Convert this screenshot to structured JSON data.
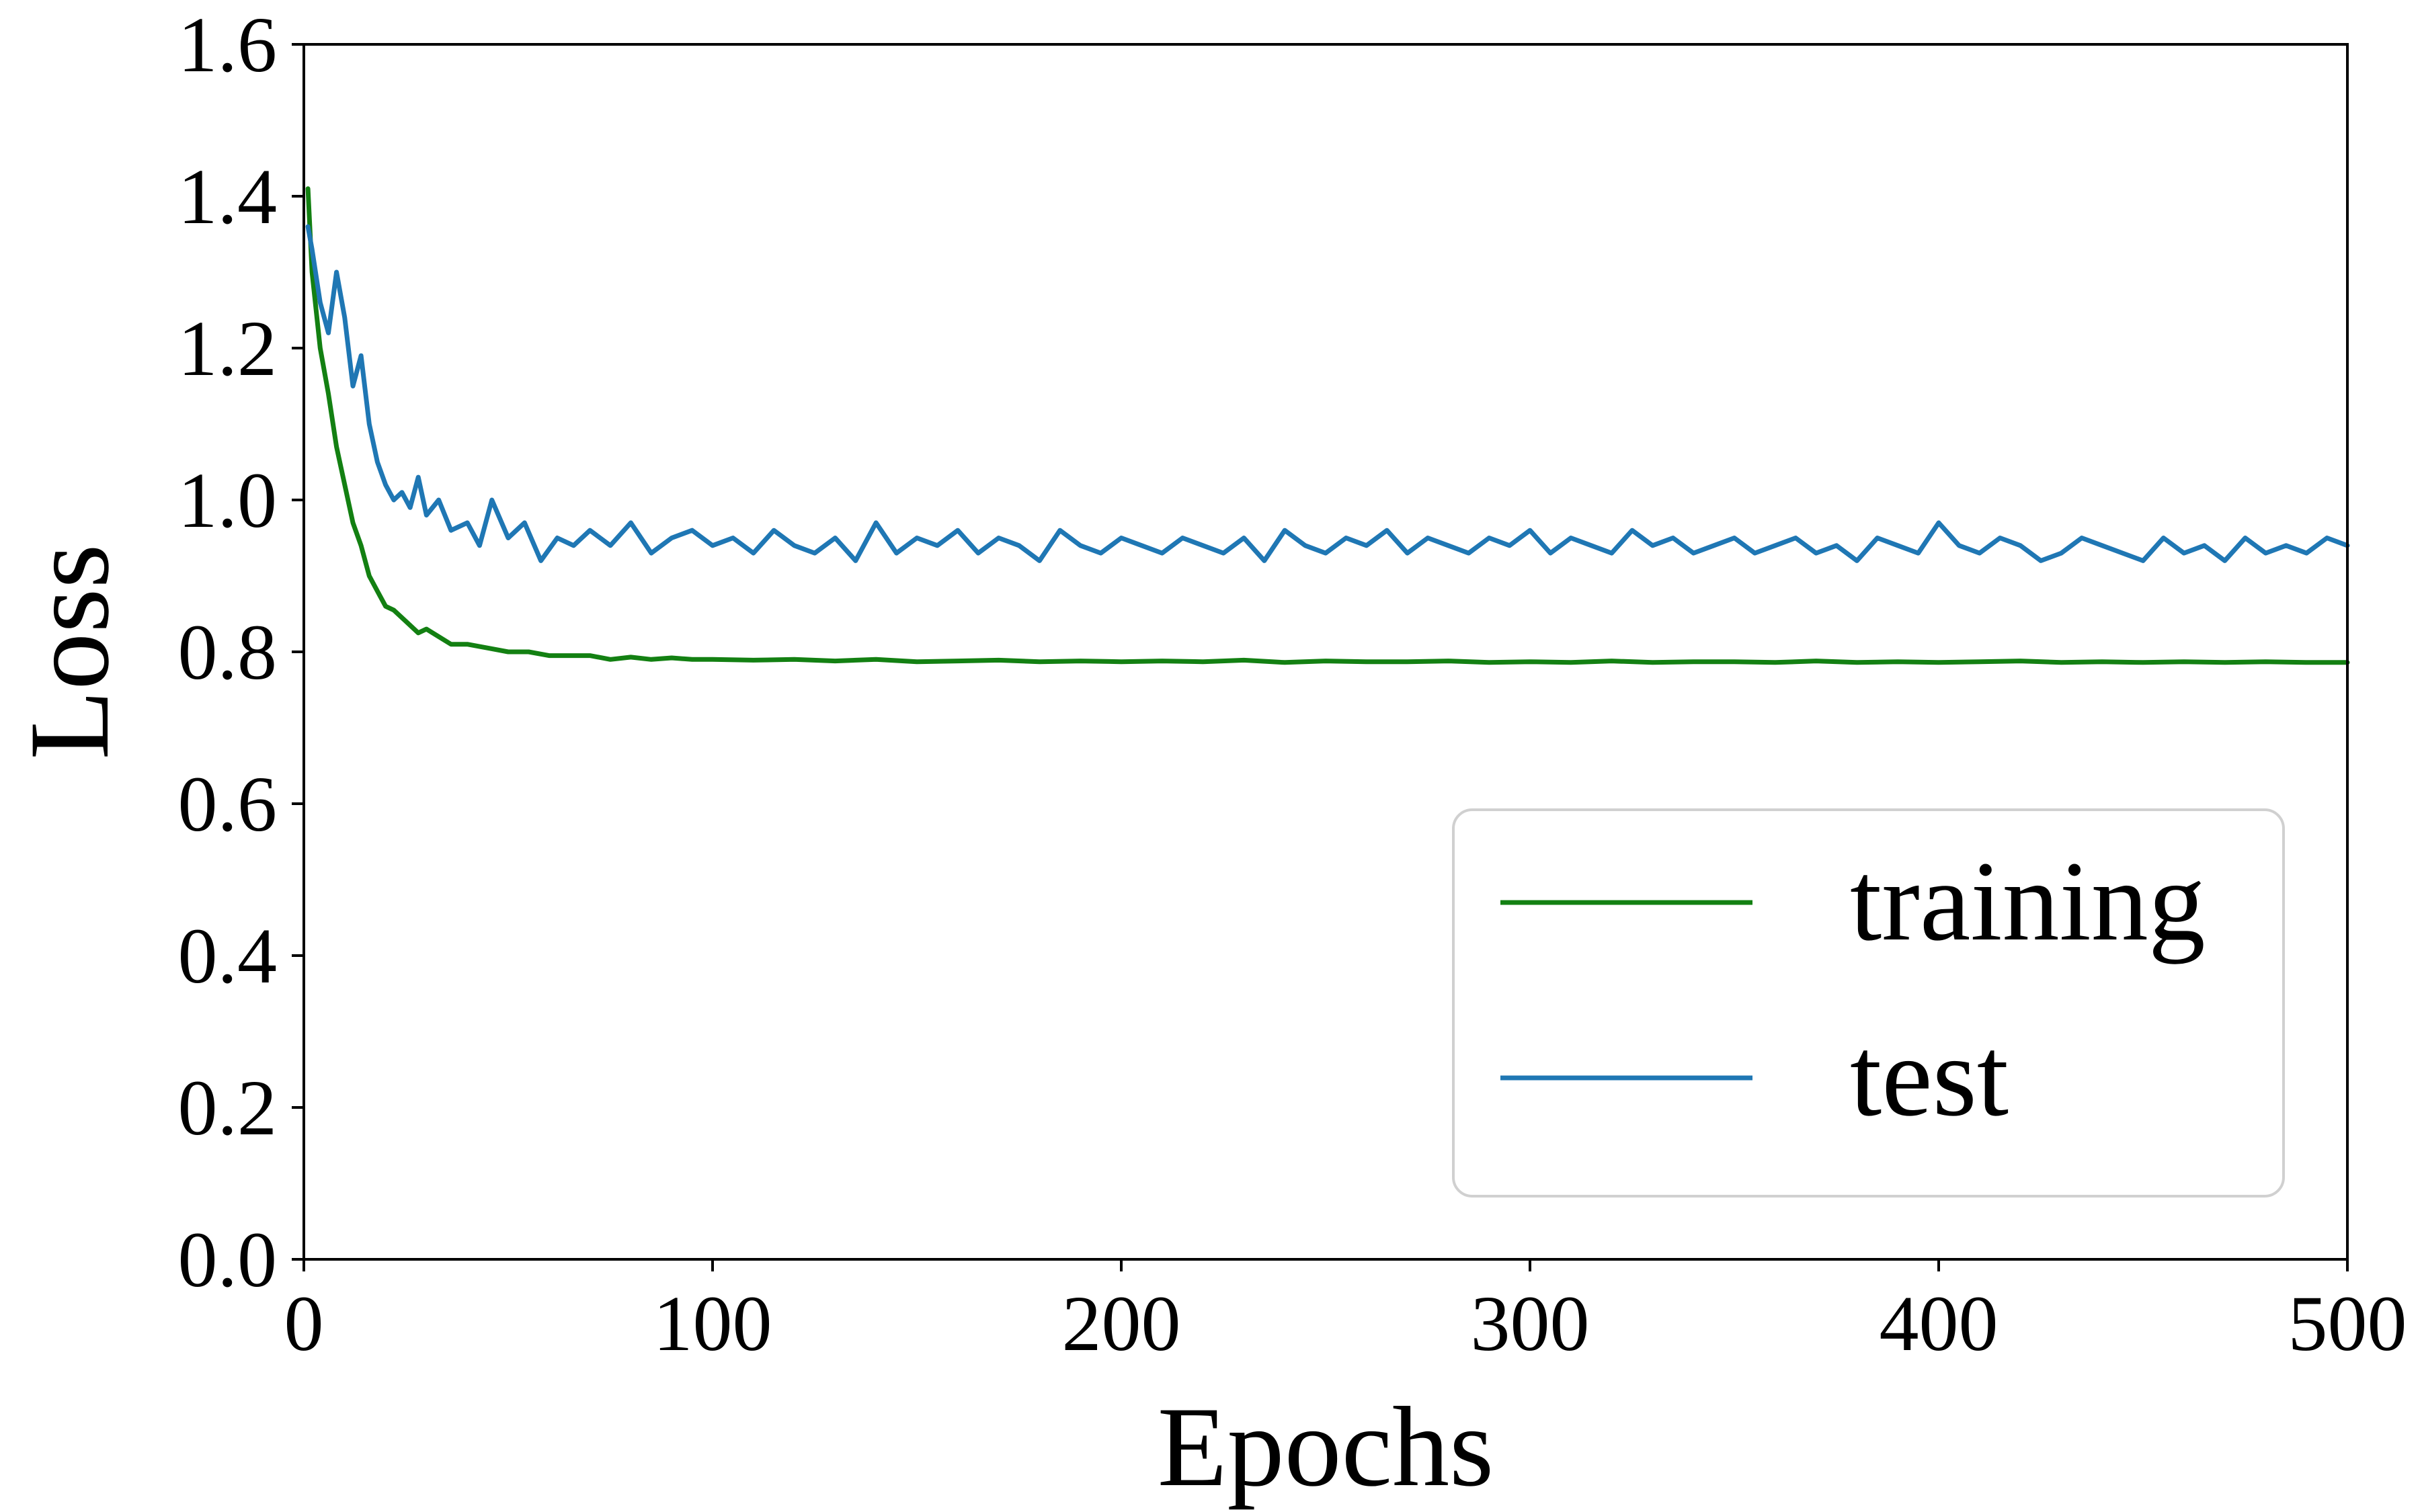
{
  "chart_data": {
    "type": "line",
    "title": "",
    "xlabel": "Epochs",
    "ylabel": "Loss",
    "xlim": [
      0,
      500
    ],
    "ylim": [
      0.0,
      1.6
    ],
    "xticks": [
      0,
      100,
      200,
      300,
      400,
      500
    ],
    "xtick_labels": [
      "0",
      "100",
      "200",
      "300",
      "400",
      "500"
    ],
    "yticks": [
      0.0,
      0.2,
      0.4,
      0.6,
      0.8,
      1.0,
      1.2,
      1.4,
      1.6
    ],
    "ytick_labels": [
      "0.0",
      "0.2",
      "0.4",
      "0.6",
      "0.8",
      "1.0",
      "1.2",
      "1.4",
      "1.6"
    ],
    "grid": false,
    "legend_position": "lower-right",
    "series": [
      {
        "name": "training",
        "color": "#138012",
        "x": [
          1,
          2,
          4,
          6,
          8,
          10,
          12,
          14,
          16,
          18,
          20,
          22,
          25,
          28,
          30,
          33,
          36,
          40,
          45,
          50,
          55,
          60,
          65,
          70,
          75,
          80,
          85,
          90,
          95,
          100,
          110,
          120,
          130,
          140,
          150,
          160,
          170,
          180,
          190,
          200,
          210,
          220,
          230,
          240,
          250,
          260,
          270,
          280,
          290,
          300,
          310,
          320,
          330,
          340,
          350,
          360,
          370,
          380,
          390,
          400,
          410,
          420,
          430,
          440,
          450,
          460,
          470,
          480,
          490,
          500
        ],
        "y": [
          1.41,
          1.3,
          1.2,
          1.14,
          1.07,
          1.02,
          0.97,
          0.94,
          0.9,
          0.88,
          0.86,
          0.855,
          0.84,
          0.825,
          0.83,
          0.82,
          0.81,
          0.81,
          0.805,
          0.8,
          0.8,
          0.795,
          0.795,
          0.795,
          0.79,
          0.793,
          0.79,
          0.792,
          0.79,
          0.79,
          0.789,
          0.79,
          0.788,
          0.79,
          0.787,
          0.788,
          0.789,
          0.787,
          0.788,
          0.787,
          0.788,
          0.787,
          0.789,
          0.786,
          0.788,
          0.787,
          0.787,
          0.788,
          0.786,
          0.787,
          0.786,
          0.788,
          0.786,
          0.787,
          0.787,
          0.786,
          0.788,
          0.786,
          0.787,
          0.786,
          0.787,
          0.788,
          0.786,
          0.787,
          0.786,
          0.787,
          0.786,
          0.787,
          0.786,
          0.786
        ]
      },
      {
        "name": "test",
        "color": "#1f77b4",
        "x": [
          1,
          2,
          4,
          6,
          8,
          10,
          12,
          14,
          16,
          18,
          20,
          22,
          24,
          26,
          28,
          30,
          33,
          36,
          40,
          43,
          46,
          50,
          54,
          58,
          62,
          66,
          70,
          75,
          80,
          85,
          90,
          95,
          100,
          105,
          110,
          115,
          120,
          125,
          130,
          135,
          140,
          145,
          150,
          155,
          160,
          165,
          170,
          175,
          180,
          185,
          190,
          195,
          200,
          205,
          210,
          215,
          220,
          225,
          230,
          235,
          240,
          245,
          250,
          255,
          260,
          265,
          270,
          275,
          280,
          285,
          290,
          295,
          300,
          305,
          310,
          315,
          320,
          325,
          330,
          335,
          340,
          345,
          350,
          355,
          360,
          365,
          370,
          375,
          380,
          385,
          390,
          395,
          400,
          405,
          410,
          415,
          420,
          425,
          430,
          435,
          440,
          445,
          450,
          455,
          460,
          465,
          470,
          475,
          480,
          485,
          490,
          495,
          500
        ],
        "y": [
          1.36,
          1.33,
          1.26,
          1.22,
          1.3,
          1.24,
          1.15,
          1.19,
          1.1,
          1.05,
          1.02,
          1.0,
          1.01,
          0.99,
          1.03,
          0.98,
          1.0,
          0.96,
          0.97,
          0.94,
          1.0,
          0.95,
          0.97,
          0.92,
          0.95,
          0.94,
          0.96,
          0.94,
          0.97,
          0.93,
          0.95,
          0.96,
          0.94,
          0.95,
          0.93,
          0.96,
          0.94,
          0.93,
          0.95,
          0.92,
          0.97,
          0.93,
          0.95,
          0.94,
          0.96,
          0.93,
          0.95,
          0.94,
          0.92,
          0.96,
          0.94,
          0.93,
          0.95,
          0.94,
          0.93,
          0.95,
          0.94,
          0.93,
          0.95,
          0.92,
          0.96,
          0.94,
          0.93,
          0.95,
          0.94,
          0.96,
          0.93,
          0.95,
          0.94,
          0.93,
          0.95,
          0.94,
          0.96,
          0.93,
          0.95,
          0.94,
          0.93,
          0.96,
          0.94,
          0.95,
          0.93,
          0.94,
          0.95,
          0.93,
          0.94,
          0.95,
          0.93,
          0.94,
          0.92,
          0.95,
          0.94,
          0.93,
          0.97,
          0.94,
          0.93,
          0.95,
          0.94,
          0.92,
          0.93,
          0.95,
          0.94,
          0.93,
          0.92,
          0.95,
          0.93,
          0.94,
          0.92,
          0.95,
          0.93,
          0.94,
          0.93,
          0.95,
          0.94
        ]
      }
    ]
  }
}
